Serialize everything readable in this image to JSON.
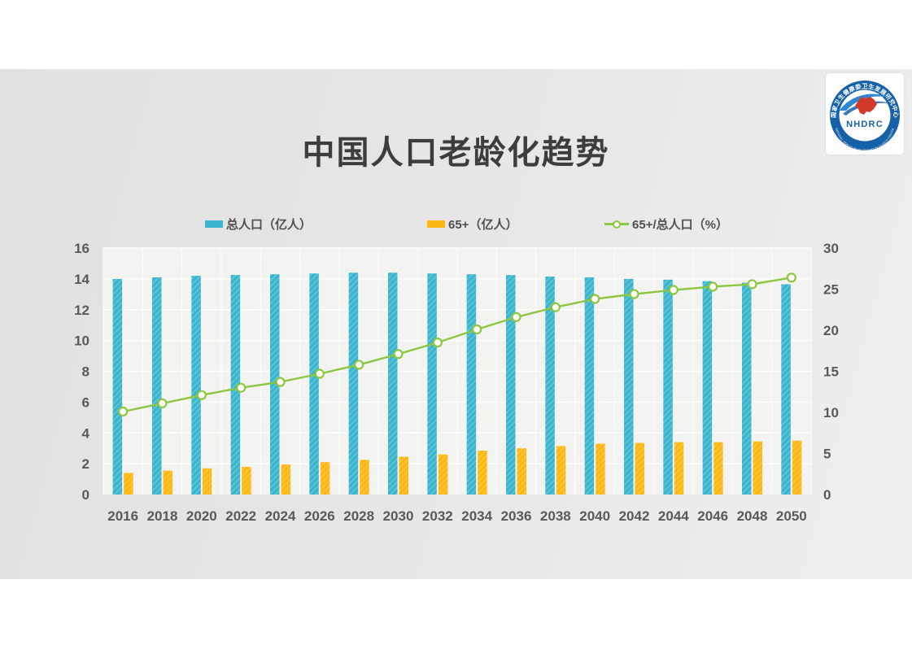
{
  "slide": {
    "title": "中国人口老龄化趋势",
    "logo": {
      "acronym": "NHDRC",
      "ring_top_text": "国家卫生健康委卫生发展研究中心",
      "ring_bottom_text": "NATIONAL HEALTH DEVELOPMENT RESEARCH CENTER"
    }
  },
  "chart_data": {
    "type": "combo",
    "title": "中国人口老龄化趋势",
    "categories": [
      "2016",
      "2018",
      "2020",
      "2022",
      "2024",
      "2026",
      "2028",
      "2030",
      "2032",
      "2034",
      "2036",
      "2038",
      "2040",
      "2042",
      "2044",
      "2046",
      "2048",
      "2050"
    ],
    "series": [
      {
        "name": "总人口（亿人）",
        "type": "bar",
        "axis": "left",
        "color": "#3bb6ce",
        "values": [
          14.0,
          14.1,
          14.2,
          14.25,
          14.3,
          14.35,
          14.4,
          14.4,
          14.35,
          14.3,
          14.25,
          14.15,
          14.1,
          14.0,
          13.95,
          13.85,
          13.75,
          13.65
        ]
      },
      {
        "name": "65+（亿人）",
        "type": "bar",
        "axis": "left",
        "color": "#fdb813",
        "values": [
          1.4,
          1.55,
          1.7,
          1.8,
          1.95,
          2.1,
          2.25,
          2.45,
          2.6,
          2.85,
          3.0,
          3.15,
          3.3,
          3.35,
          3.4,
          3.4,
          3.45,
          3.5
        ]
      },
      {
        "name": "65+/总人口（%）",
        "type": "line",
        "axis": "right",
        "color": "#8dc63f",
        "values": [
          10.1,
          11.1,
          12.1,
          13.0,
          13.7,
          14.7,
          15.8,
          17.1,
          18.5,
          20.1,
          21.6,
          22.8,
          23.8,
          24.4,
          24.9,
          25.3,
          25.6,
          26.4
        ]
      }
    ],
    "left_axis": {
      "min": 0,
      "max": 16,
      "ticks": [
        0,
        2,
        4,
        6,
        8,
        10,
        12,
        14,
        16
      ]
    },
    "right_axis": {
      "min": 0,
      "max": 30,
      "ticks": [
        0,
        5,
        10,
        15,
        20,
        25,
        30
      ]
    },
    "grid": true,
    "legend_position": "top",
    "plot_bg": "#f2f2f0",
    "gridline_color": "#ffffff",
    "axis_text_color": "#595959"
  }
}
